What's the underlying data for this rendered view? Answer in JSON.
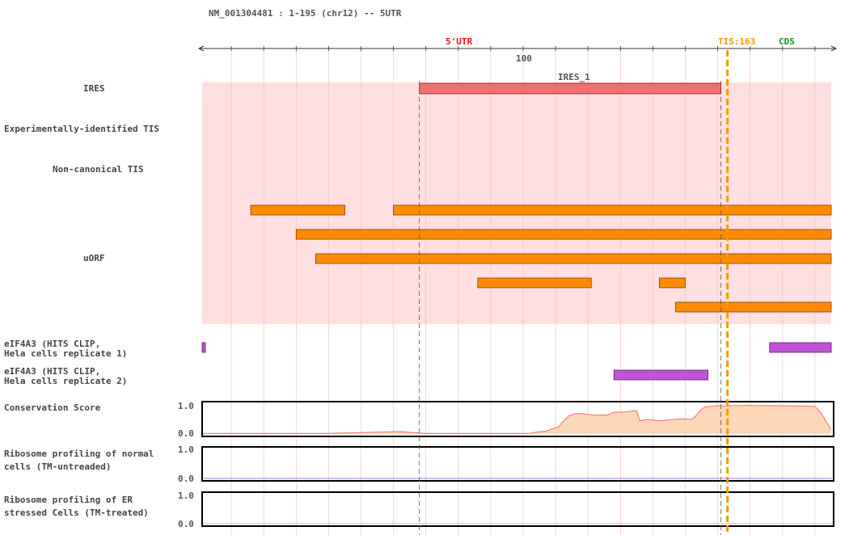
{
  "title": "NM_001304481 : 1-195 (chr12) -- 5UTR",
  "ruler": {
    "tick_label": "100",
    "region_5utr": "5'UTR",
    "tis_label": "TIS:163",
    "cds_label": "CDS"
  },
  "tracks": {
    "ires": "IRES",
    "exp_tis": "Experimentally-identified TIS",
    "noncanonical_tis": "Non-canonical TIS",
    "uorf": "uORF",
    "eif4a3_rep1_line1": "eIF4A3 (HITS CLIP,",
    "eif4a3_rep1_line2": "Hela cells replicate 1)",
    "eif4a3_rep2_line1": "eIF4A3 (HITS CLIP,",
    "eif4a3_rep2_line2": "Hela cells replicate 2)",
    "conservation": "Conservation Score",
    "ribo_normal_line1": "Ribosome profiling of normal",
    "ribo_normal_line2": "cells (TM-untreaded)",
    "ribo_er_line1": "Ribosome profiling of ER",
    "ribo_er_line2": "stressed Cells (TM-treated)"
  },
  "ires_feature": {
    "name": "IRES_1",
    "start": 68,
    "end": 161
  },
  "y_axis": {
    "max": "1.0",
    "min": "0.0"
  },
  "chart_data": {
    "type": "area",
    "seq_range": [
      1,
      195
    ],
    "boundaries": {
      "utr_end": 68,
      "tis": 163
    },
    "uorfs": [
      [
        16,
        45
      ],
      [
        60,
        195
      ],
      [
        30,
        195
      ],
      [
        36,
        195
      ],
      [
        86,
        121
      ],
      [
        142,
        150
      ],
      [
        147,
        195
      ]
    ],
    "eif4a3_rep1": [
      [
        1,
        2
      ],
      [
        176,
        195
      ]
    ],
    "eif4a3_rep2": [
      [
        128,
        157
      ]
    ],
    "conservation_x": [
      1,
      40,
      50,
      60,
      62,
      70,
      90,
      102,
      103,
      107,
      111,
      112,
      114,
      116,
      118,
      122,
      126,
      128,
      130,
      132,
      134,
      135,
      136,
      138,
      141,
      142,
      146,
      150,
      152,
      153,
      155,
      156,
      158,
      160,
      170,
      180,
      190,
      192,
      195
    ],
    "conservation_y": [
      0.02,
      0.02,
      0.05,
      0.08,
      0.08,
      0.02,
      0.02,
      0.02,
      0.05,
      0.1,
      0.25,
      0.4,
      0.62,
      0.7,
      0.7,
      0.65,
      0.65,
      0.75,
      0.75,
      0.76,
      0.8,
      0.8,
      0.45,
      0.5,
      0.47,
      0.45,
      0.5,
      0.52,
      0.5,
      0.6,
      0.85,
      0.93,
      0.95,
      0.97,
      0.98,
      0.97,
      0.95,
      0.7,
      0.15
    ],
    "ribo_normal": [
      0,
      0
    ],
    "ribo_er": [
      0,
      0
    ]
  },
  "colors": {
    "ires_bg": "#ffdfdf",
    "ires_bar": "#f07070",
    "uorf": "#ff8c00",
    "eif4a3": "#bf55d6",
    "conservation_fill": "#fdd7b8",
    "conservation_line": "#f07060",
    "tis": "#f59a00",
    "utr": "#ee1111",
    "cds": "#119911",
    "ribo_normal_line": "#a080d0",
    "ribo_er_line": "#f4a0c0"
  }
}
